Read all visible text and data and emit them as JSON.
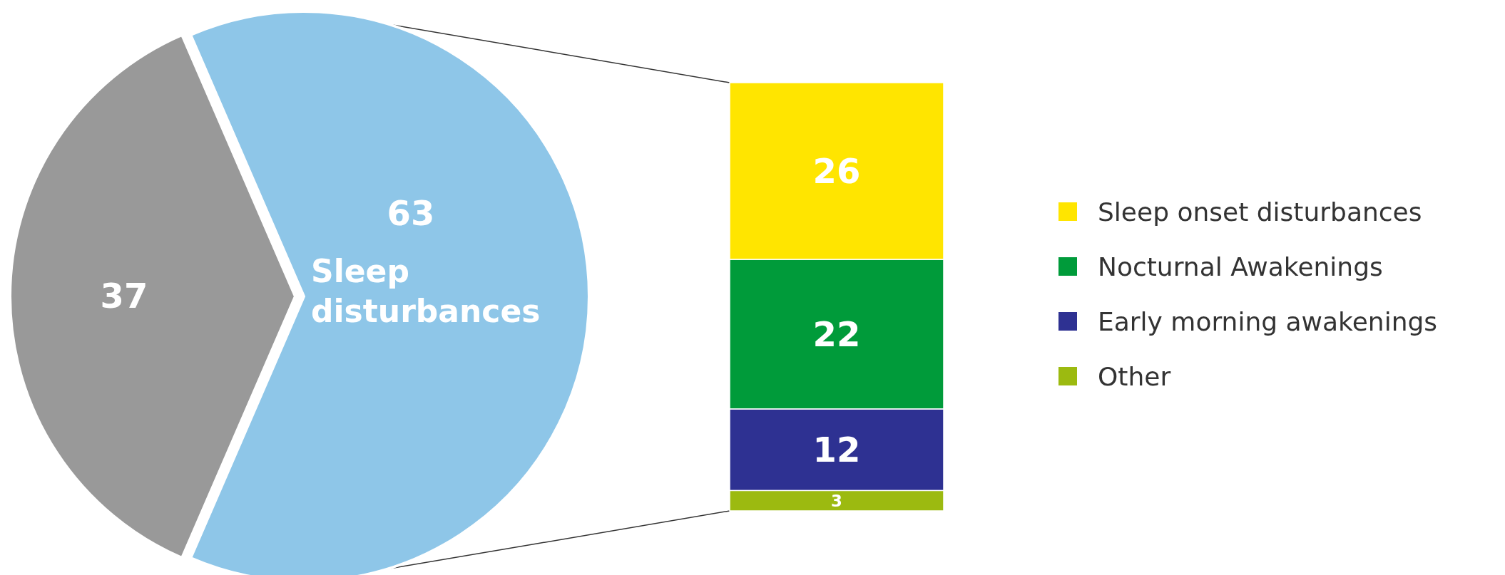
{
  "chart_data": [
    {
      "type": "pie",
      "categories": [
        null,
        "Sleep disturbances"
      ],
      "values": [
        37,
        63
      ],
      "colors": [
        "#999999",
        "#8ec6e8"
      ],
      "data_labels": true
    },
    {
      "type": "bar",
      "stacked": true,
      "categories": [
        null
      ],
      "data_labels": true,
      "legend": "right",
      "series": [
        {
          "name": "Other",
          "color": "#9cba10",
          "values": [
            3
          ]
        },
        {
          "name": "Early morning awakenings",
          "color": "#2e3192",
          "values": [
            12
          ]
        },
        {
          "name": "Nocturnal Awakenings",
          "color": "#009b3a",
          "values": [
            22
          ]
        },
        {
          "name": "Sleep onset disturbances",
          "color": "#ffe500",
          "values": [
            26
          ]
        }
      ]
    }
  ]
}
